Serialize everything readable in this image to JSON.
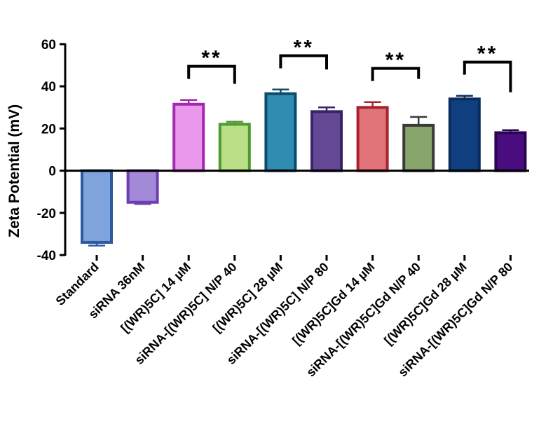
{
  "chart_data": {
    "type": "bar",
    "title": "",
    "xlabel": "",
    "ylabel": "Zeta Potential (mV)",
    "ylim": [
      -40,
      60
    ],
    "yticks": [
      -40,
      -20,
      0,
      20,
      40,
      60
    ],
    "grid": false,
    "categories": [
      "Standard",
      "siRNA 36nM",
      "[(WR)5C] 14 µM",
      "siRNA-[(WR)5C] N/P 40",
      "[(WR)5C] 28 µM",
      "siRNA-[(WR)5C]  N/P 80",
      "[(WR)5C]Gd 14 µM",
      "siRNA-[(WR)5C]Gd  N/P 40",
      "[(WR)5C]Gd 28 µM",
      "siRNA-[(WR)5C]Gd N/P 80"
    ],
    "values": [
      -34,
      -15,
      31.5,
      22,
      36.5,
      28,
      30,
      21.5,
      34,
      18
    ],
    "errors": [
      1.5,
      0.8,
      2,
      1.2,
      2,
      2,
      2.5,
      4,
      1.5,
      1.2
    ],
    "colors": {
      "fill": [
        "#7FA3DC",
        "#A38AD8",
        "#E998EC",
        "#BADF86",
        "#2F8DB2",
        "#644795",
        "#E07478",
        "#88A56C",
        "#0F3F7F",
        "#4A0D80"
      ],
      "stroke": [
        "#2E5A9E",
        "#6C3FB3",
        "#A32AB0",
        "#4E9A2E",
        "#0D4A6B",
        "#3A2466",
        "#A8232F",
        "#3A3A3A",
        "#0A2C5C",
        "#2A0650"
      ]
    },
    "annotations": [
      {
        "text": "**",
        "from": 2,
        "to": 3
      },
      {
        "text": "**",
        "from": 4,
        "to": 5
      },
      {
        "text": "**",
        "from": 6,
        "to": 7
      },
      {
        "text": "**",
        "from": 8,
        "to": 9
      }
    ]
  }
}
